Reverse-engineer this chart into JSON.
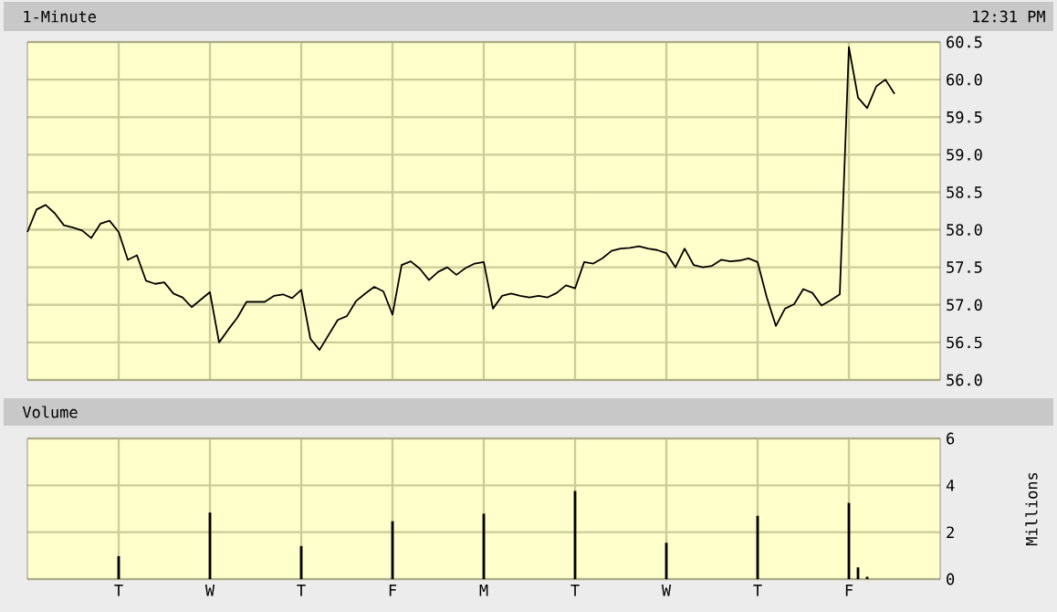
{
  "chart_data": [
    {
      "type": "line",
      "title": "1-Minute",
      "annotations": [
        "12:31 PM"
      ],
      "color": "#000000",
      "categories": [
        null,
        null,
        null,
        null,
        null,
        null,
        null,
        null,
        null,
        null,
        null,
        null,
        null,
        null,
        null,
        null,
        null,
        null,
        null,
        null,
        null,
        null,
        null,
        null,
        null,
        null,
        null,
        null,
        null,
        null,
        null,
        null,
        null,
        null,
        null,
        null,
        null,
        null,
        null,
        null,
        null,
        null,
        null,
        null,
        null,
        null,
        null,
        null,
        null,
        null,
        null,
        null,
        null,
        null,
        null,
        null,
        null,
        null,
        null,
        null,
        null,
        null,
        null,
        null,
        null,
        null,
        null,
        null,
        null,
        null,
        null,
        null,
        null,
        null,
        null,
        null,
        null,
        null,
        null,
        null,
        null,
        null,
        null,
        null,
        null,
        null,
        null,
        null,
        null,
        null,
        null,
        null,
        null,
        null,
        null,
        null,
        null,
        null,
        null,
        null
      ],
      "values": [
        57.97,
        58.27,
        58.33,
        58.22,
        58.06,
        58.03,
        57.99,
        57.89,
        58.08,
        58.12,
        57.97,
        57.6,
        57.66,
        57.32,
        57.28,
        57.3,
        57.15,
        57.1,
        56.97,
        57.07,
        57.17,
        56.5,
        56.67,
        56.83,
        57.04,
        57.04,
        57.04,
        57.12,
        57.14,
        57.09,
        57.2,
        56.55,
        56.4,
        56.6,
        56.8,
        56.85,
        57.05,
        57.15,
        57.24,
        57.18,
        56.87,
        57.53,
        57.58,
        57.48,
        57.33,
        57.44,
        57.5,
        57.4,
        57.49,
        57.55,
        57.57,
        56.95,
        57.12,
        57.15,
        57.12,
        57.1,
        57.12,
        57.1,
        57.16,
        57.26,
        57.22,
        57.57,
        57.55,
        57.62,
        57.72,
        57.75,
        57.76,
        57.78,
        57.75,
        57.73,
        57.69,
        57.5,
        57.75,
        57.53,
        57.5,
        57.52,
        57.6,
        57.58,
        57.59,
        57.62,
        57.57,
        57.1,
        56.72,
        56.95,
        57.01,
        57.21,
        57.16,
        56.99,
        57.06,
        57.14,
        60.43,
        59.76,
        59.62,
        59.91,
        60.0,
        59.81,
        null,
        null,
        null,
        null
      ],
      "ylim": [
        56,
        60.5
      ],
      "yticks": [
        {
          "value": 56,
          "label": "56.0"
        },
        56.5,
        {
          "value": 57,
          "label": "57.0"
        },
        57.5,
        {
          "value": 58,
          "label": "58.0"
        },
        58.5,
        {
          "value": 59,
          "label": "59.0"
        },
        59.5,
        {
          "value": 60,
          "label": "60.0"
        },
        60.5
      ],
      "grid": true,
      "tick_labels": "y"
    },
    {
      "type": "bar",
      "title": "Volume",
      "ylabel": "Millions",
      "color": "#000000",
      "categories": [
        null,
        null,
        null,
        null,
        null,
        null,
        null,
        null,
        null,
        null,
        "T",
        null,
        null,
        null,
        null,
        null,
        null,
        null,
        null,
        null,
        "W",
        null,
        null,
        null,
        null,
        null,
        null,
        null,
        null,
        null,
        "T",
        null,
        null,
        null,
        null,
        null,
        null,
        null,
        null,
        null,
        "F",
        null,
        null,
        null,
        null,
        null,
        null,
        null,
        null,
        null,
        "M",
        null,
        null,
        null,
        null,
        null,
        null,
        null,
        null,
        null,
        "T",
        null,
        null,
        null,
        null,
        null,
        null,
        null,
        null,
        null,
        "W",
        null,
        null,
        null,
        null,
        null,
        null,
        null,
        null,
        null,
        "T",
        null,
        null,
        null,
        null,
        null,
        null,
        null,
        null,
        null,
        "F",
        null,
        null,
        null,
        null,
        null,
        null,
        null,
        null,
        null
      ],
      "values": [
        null,
        null,
        null,
        null,
        null,
        null,
        null,
        null,
        null,
        null,
        0.98,
        null,
        null,
        null,
        null,
        null,
        null,
        null,
        null,
        null,
        2.84,
        null,
        null,
        null,
        null,
        null,
        null,
        null,
        null,
        null,
        1.41,
        null,
        null,
        null,
        null,
        null,
        null,
        null,
        null,
        null,
        2.47,
        null,
        null,
        null,
        null,
        null,
        null,
        null,
        null,
        null,
        2.79,
        null,
        null,
        null,
        null,
        null,
        null,
        null,
        null,
        null,
        3.76,
        null,
        null,
        null,
        null,
        null,
        null,
        null,
        null,
        null,
        1.55,
        null,
        null,
        null,
        null,
        null,
        null,
        null,
        null,
        null,
        2.7,
        null,
        null,
        null,
        null,
        null,
        null,
        null,
        null,
        null,
        3.25,
        0.5,
        0.1,
        null,
        null,
        null,
        null,
        null,
        null,
        null
      ],
      "ylim": [
        0,
        6
      ],
      "yticks": [
        0,
        2,
        4,
        6
      ],
      "grid": true
    }
  ]
}
